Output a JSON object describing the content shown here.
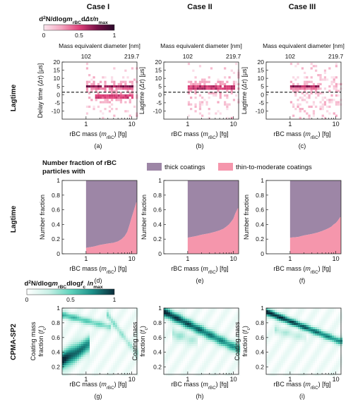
{
  "case_titles": [
    "Case I",
    "Case II",
    "Case III"
  ],
  "row_labels": {
    "lagtime": "Lagtime",
    "cpma": "CPMA-SP2"
  },
  "colorbar_lagtime": {
    "label": "d²N/dlogm_rBC dΔτ/n_max",
    "ticks": [
      "0",
      "0.5",
      "1"
    ],
    "colors": [
      "#fbe6ee",
      "#f4a6c0",
      "#e0417a",
      "#7a1048",
      "#2b0a2a"
    ]
  },
  "colorbar_cpma": {
    "label": "d²N/dlogm_rBC dlogf_c /n_max",
    "ticks": [
      "0",
      "0.5",
      "1"
    ],
    "colors": [
      "#ffffff",
      "#c9f0e6",
      "#5fd3bc",
      "#1b8f88",
      "#0b2c3a"
    ]
  },
  "legend_title": "Number fraction of rBC particles with",
  "colors": {
    "thick": "#9d86a6",
    "thin": "#f596ac",
    "lag_row_label": "#c0192e",
    "cpma_row_label": "#1aa39a"
  },
  "chart_data": [
    {
      "panel": "(a)",
      "type": "heatmap",
      "title": "Case I",
      "xlabel": "rBC mass (m_rBC) [fg]",
      "ylabel": "Delay time (Δτ) [μs]",
      "x_scale": "log",
      "xlim": [
        0.3,
        13
      ],
      "ylim": [
        -15,
        20
      ],
      "xticks": [
        "1",
        "10"
      ],
      "yticks": [
        "-10",
        "-5",
        "0",
        "5",
        "10",
        "15",
        "20"
      ],
      "top_axis": {
        "label": "Mass equivalent diameter [nm]",
        "ticks": [
          "102",
          "219.7"
        ]
      },
      "dashed_line_y": 1.5,
      "clusters": [
        {
          "x_from": 1,
          "x_to": 10,
          "y": 5.5,
          "level": 0.9
        },
        {
          "x_from": 1.5,
          "x_to": 10,
          "y": -0.5,
          "level": 0.8
        }
      ]
    },
    {
      "panel": "(b)",
      "type": "heatmap",
      "title": "Case II",
      "xlabel": "rBC mass (m_rBC) [fg]",
      "ylabel": "Lagtime (Δτ) [μs]",
      "x_scale": "log",
      "xlim": [
        0.3,
        13
      ],
      "ylim": [
        -15,
        20
      ],
      "xticks": [
        "1",
        "10"
      ],
      "yticks": [
        "-10",
        "-5",
        "0",
        "5",
        "10",
        "15",
        "20"
      ],
      "top_axis": {
        "label": "Mass equivalent diameter [nm]",
        "ticks": [
          "102",
          "219.7"
        ]
      },
      "dashed_line_y": 1.5,
      "clusters": [
        {
          "x_from": 1,
          "x_to": 10,
          "y": 5,
          "level": 0.9
        }
      ]
    },
    {
      "panel": "(c)",
      "type": "heatmap",
      "title": "Case III",
      "xlabel": "rBC mass (m_rBC) [fg]",
      "ylabel": "Lagtime (Δτ) [μs]",
      "x_scale": "log",
      "xlim": [
        0.3,
        13
      ],
      "ylim": [
        -15,
        20
      ],
      "xticks": [
        "1",
        "10"
      ],
      "yticks": [
        "-10",
        "-5",
        "0",
        "5",
        "10",
        "15",
        "20"
      ],
      "top_axis": {
        "label": "Mass equivalent diameter [nm]",
        "ticks": [
          "102",
          "219.7"
        ]
      },
      "dashed_line_y": 1.5,
      "clusters": [
        {
          "x_from": 1,
          "x_to": 4,
          "y": 5.5,
          "level": 0.8
        }
      ]
    },
    {
      "panel": "(d)",
      "type": "area",
      "xlabel": "rBC mass (m_rBC) [fg]",
      "ylabel": "Number fraction",
      "x_scale": "log",
      "xlim": [
        0.3,
        13
      ],
      "ylim": [
        0,
        1
      ],
      "xticks": [
        "1",
        "10"
      ],
      "yticks": [
        "0",
        "0.2",
        "0.4",
        "0.6",
        "0.8",
        "1"
      ],
      "x": [
        1,
        1.5,
        2,
        3,
        4,
        5,
        6,
        7,
        8,
        9,
        10,
        11,
        12.5
      ],
      "series": [
        {
          "name": "thin-to-moderate coatings",
          "values": [
            0.08,
            0.1,
            0.12,
            0.14,
            0.15,
            0.17,
            0.2,
            0.24,
            0.3,
            0.4,
            0.5,
            0.58,
            0.7
          ]
        },
        {
          "name": "thick coatings",
          "values": [
            0.92,
            0.9,
            0.88,
            0.86,
            0.85,
            0.83,
            0.8,
            0.76,
            0.7,
            0.6,
            0.5,
            0.42,
            0.3
          ]
        }
      ]
    },
    {
      "panel": "(e)",
      "type": "area",
      "xlabel": "rBC mass (m_rBC) [fg]",
      "ylabel": "Number fraction",
      "x_scale": "log",
      "xlim": [
        0.3,
        13
      ],
      "ylim": [
        0,
        1
      ],
      "xticks": [
        "1",
        "10"
      ],
      "yticks": [
        "0",
        "0.2",
        "0.4",
        "0.6",
        "0.8",
        "1"
      ],
      "x": [
        1,
        1.5,
        2,
        3,
        4,
        5,
        6,
        7,
        8,
        9,
        10,
        11,
        12.5
      ],
      "series": [
        {
          "name": "thin-to-moderate coatings",
          "values": [
            0.22,
            0.24,
            0.26,
            0.28,
            0.3,
            0.32,
            0.34,
            0.37,
            0.4,
            0.44,
            0.48,
            0.55,
            0.62
          ]
        },
        {
          "name": "thick coatings",
          "values": [
            0.78,
            0.76,
            0.74,
            0.72,
            0.7,
            0.68,
            0.66,
            0.63,
            0.6,
            0.56,
            0.52,
            0.45,
            0.38
          ]
        }
      ]
    },
    {
      "panel": "(f)",
      "type": "area",
      "xlabel": "rBC mass (m_rBC) [fg]",
      "ylabel": "Number fraction",
      "x_scale": "log",
      "xlim": [
        0.3,
        13
      ],
      "ylim": [
        0,
        1
      ],
      "xticks": [
        "1",
        "10"
      ],
      "yticks": [
        "0",
        "0.2",
        "0.4",
        "0.6",
        "0.8",
        "1"
      ],
      "x": [
        1,
        1.5,
        2,
        3,
        4,
        5,
        6,
        7,
        8,
        9,
        10,
        11,
        12.5
      ],
      "series": [
        {
          "name": "thin-to-moderate coatings",
          "values": [
            0.22,
            0.23,
            0.25,
            0.27,
            0.29,
            0.31,
            0.33,
            0.35,
            0.37,
            0.4,
            0.42,
            0.45,
            0.5
          ]
        },
        {
          "name": "thick coatings",
          "values": [
            0.78,
            0.77,
            0.75,
            0.73,
            0.71,
            0.69,
            0.67,
            0.65,
            0.63,
            0.6,
            0.58,
            0.55,
            0.5
          ]
        }
      ]
    },
    {
      "panel": "(g)",
      "type": "heatmap",
      "xlabel": "rBC mass (m_rBC) [fg]",
      "ylabel": "Coating mass fraction (f_c)",
      "x_scale": "log",
      "xlim": [
        0.3,
        13
      ],
      "ylim": [
        0.1,
        1
      ],
      "xticks": [
        "1",
        "10"
      ],
      "yticks": [
        "0.2",
        "0.4",
        "0.6",
        "0.8",
        "1"
      ],
      "ridges": [
        {
          "x0": 0.3,
          "y0": 0.28,
          "x1": 1.1,
          "y1": 0.5,
          "w": 0.12,
          "level": 1.0
        },
        {
          "x0": 0.35,
          "y0": 0.9,
          "x1": 3,
          "y1": 0.75,
          "w": 0.05,
          "level": 0.55
        },
        {
          "x0": 3,
          "y0": 0.9,
          "x1": 12,
          "y1": 0.4,
          "w": 0.06,
          "level": 0.35
        }
      ]
    },
    {
      "panel": "(h)",
      "type": "heatmap",
      "xlabel": "rBC mass (m_rBC) [fg]",
      "ylabel": "Coating mass fraction (f_c)",
      "x_scale": "log",
      "xlim": [
        0.3,
        13
      ],
      "ylim": [
        0.1,
        1
      ],
      "xticks": [
        "1",
        "10"
      ],
      "yticks": [
        "0.2",
        "0.4",
        "0.6",
        "0.8",
        "1"
      ],
      "ridges": [
        {
          "x0": 0.3,
          "y0": 0.95,
          "x1": 12,
          "y1": 0.45,
          "w": 0.07,
          "level": 0.95
        },
        {
          "x0": 0.5,
          "y0": 0.65,
          "x1": 1.5,
          "y1": 0.55,
          "w": 0.08,
          "level": 0.3
        }
      ]
    },
    {
      "panel": "(i)",
      "type": "heatmap",
      "xlabel": "rBC mass (m_rBC) [fg]",
      "ylabel": "Coating mass fraction (f_c)",
      "x_scale": "log",
      "xlim": [
        0.3,
        13
      ],
      "ylim": [
        0.1,
        1
      ],
      "xticks": [
        "1",
        "10"
      ],
      "yticks": [
        "0.2",
        "0.4",
        "0.6",
        "0.8",
        "1"
      ],
      "ridges": [
        {
          "x0": 0.3,
          "y0": 0.95,
          "x1": 12,
          "y1": 0.55,
          "w": 0.05,
          "level": 1.0
        },
        {
          "x0": 0.5,
          "y0": 0.7,
          "x1": 2,
          "y1": 0.6,
          "w": 0.06,
          "level": 0.25
        }
      ]
    }
  ]
}
